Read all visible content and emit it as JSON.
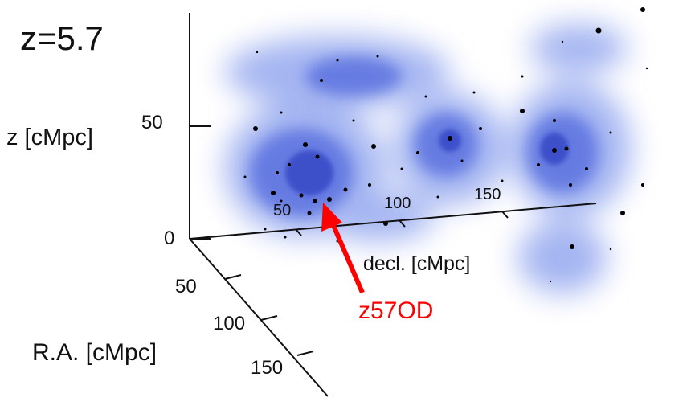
{
  "chart_data": {
    "type": "scatter",
    "title": "z=5.7",
    "axes": {
      "z": {
        "label": "z [cMpc]",
        "ticks": [
          "0",
          "50"
        ]
      },
      "decl": {
        "label": "decl. [cMpc]",
        "ticks": [
          "50",
          "100",
          "150"
        ]
      },
      "ra": {
        "label": "R.A. [cMpc]",
        "ticks": [
          "50",
          "100",
          "150"
        ]
      }
    },
    "annotation": {
      "text": "z57OD",
      "color": "#ff0000"
    },
    "density_color": "#2b3fd4",
    "point_color": "#000000",
    "grid": false,
    "legend": "none"
  }
}
